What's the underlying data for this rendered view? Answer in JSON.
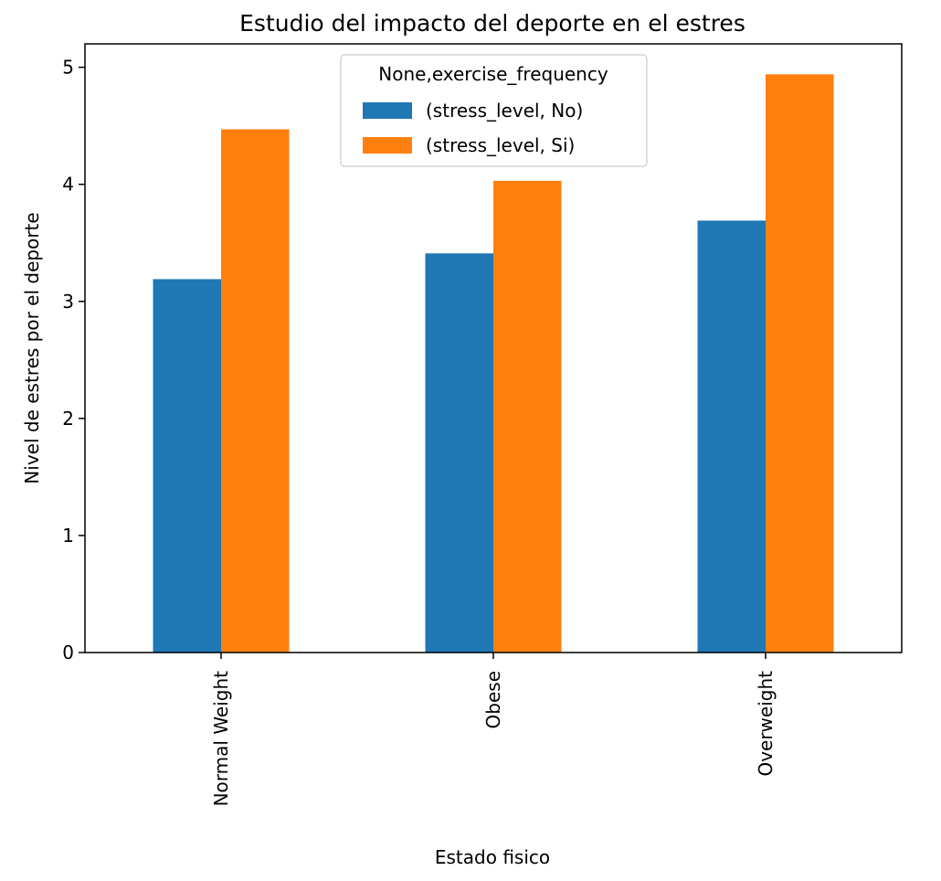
{
  "chart_data": {
    "type": "bar",
    "title": "Estudio del impacto del deporte en el estres",
    "xlabel": "Estado fisico",
    "ylabel": "Nivel de estres por el deporte",
    "categories": [
      "Normal Weight",
      "Obese",
      "Overweight"
    ],
    "series": [
      {
        "name": "(stress_level, No)",
        "values": [
          3.19,
          3.41,
          3.69
        ],
        "color": "#1f77b4"
      },
      {
        "name": "(stress_level, Si)",
        "values": [
          4.47,
          4.03,
          4.94
        ],
        "color": "#ff7f0e"
      }
    ],
    "ylim": [
      0,
      5.2
    ],
    "yticks": [
      0,
      1,
      2,
      3,
      4,
      5
    ],
    "grid": false,
    "legend": {
      "title": "None,exercise_frequency",
      "placement": "top-center"
    }
  }
}
